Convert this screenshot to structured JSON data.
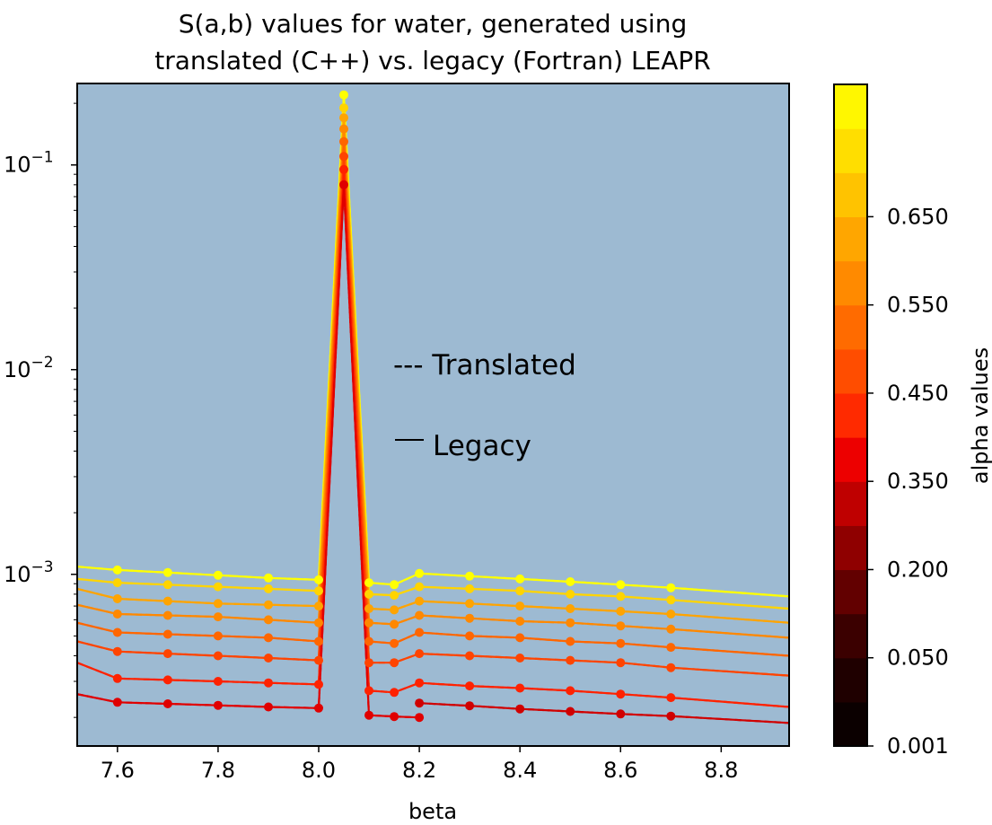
{
  "chart_data": {
    "type": "line",
    "title_line1": "S(a,b) values for water, generated using",
    "title_line2": "translated (C++) vs. legacy (Fortran) LEAPR",
    "xlabel": "beta",
    "ylabel": "",
    "xlim": [
      7.52,
      8.935
    ],
    "ylim": [
      0.000145,
      0.25
    ],
    "yscale": "log",
    "xticks": [
      7.6,
      7.8,
      8.0,
      8.2,
      8.4,
      8.6,
      8.8
    ],
    "yticks": [
      {
        "value": 0.001,
        "base": "10",
        "exp": "−3"
      },
      {
        "value": 0.01,
        "base": "10",
        "exp": "−2"
      },
      {
        "value": 0.1,
        "base": "10",
        "exp": "−1"
      }
    ],
    "plot_background": "#9dbad2",
    "legend": {
      "translated_label": "--- Translated",
      "legacy_label": "Legacy"
    },
    "colorbar": {
      "label": "alpha values",
      "tick_labels": [
        "0.001",
        "0.050",
        "0.200",
        "0.350",
        "0.450",
        "0.550",
        "0.650"
      ],
      "colors": [
        "#0b0000",
        "#1f0000",
        "#3b0000",
        "#620000",
        "#8f0000",
        "#bf0000",
        "#ed0000",
        "#ff2a00",
        "#ff4d00",
        "#ff6b00",
        "#ff8a00",
        "#ffa600",
        "#ffc300",
        "#ffde00",
        "#fff700"
      ]
    },
    "series": [
      {
        "color": "#ffff00",
        "left": [
          [
            7.52,
            0.00109
          ],
          [
            7.6,
            0.00105
          ],
          [
            7.7,
            0.00102
          ],
          [
            7.8,
            0.00099
          ],
          [
            7.9,
            0.00096
          ],
          [
            8.0,
            0.00094
          ]
        ],
        "peak": 0.22,
        "right": [
          [
            8.1,
            0.00091
          ],
          [
            8.15,
            0.00089
          ],
          [
            8.2,
            0.00101
          ],
          [
            8.3,
            0.00098
          ],
          [
            8.4,
            0.00095
          ],
          [
            8.5,
            0.00092
          ],
          [
            8.6,
            0.00089
          ],
          [
            8.7,
            0.00086
          ],
          [
            8.935,
            0.00078
          ]
        ]
      },
      {
        "color": "#ffd400",
        "left": [
          [
            7.52,
            0.00095
          ],
          [
            7.6,
            0.00091
          ],
          [
            7.7,
            0.00089
          ],
          [
            7.8,
            0.00087
          ],
          [
            7.9,
            0.00085
          ],
          [
            8.0,
            0.00083
          ]
        ],
        "peak": 0.19,
        "right": [
          [
            8.1,
            0.0008
          ],
          [
            8.15,
            0.00079
          ],
          [
            8.2,
            0.00087
          ],
          [
            8.3,
            0.00085
          ],
          [
            8.4,
            0.00083
          ],
          [
            8.5,
            0.0008
          ],
          [
            8.6,
            0.00078
          ],
          [
            8.7,
            0.00075
          ],
          [
            8.935,
            0.00068
          ]
        ]
      },
      {
        "color": "#ffa400",
        "left": [
          [
            7.52,
            0.00085
          ],
          [
            7.6,
            0.00076
          ],
          [
            7.7,
            0.00074
          ],
          [
            7.8,
            0.00072
          ],
          [
            7.9,
            0.00071
          ],
          [
            8.0,
            0.0007
          ]
        ],
        "peak": 0.17,
        "right": [
          [
            8.1,
            0.00068
          ],
          [
            8.15,
            0.00067
          ],
          [
            8.2,
            0.00074
          ],
          [
            8.3,
            0.00072
          ],
          [
            8.4,
            0.0007
          ],
          [
            8.5,
            0.00068
          ],
          [
            8.6,
            0.00066
          ],
          [
            8.7,
            0.00064
          ],
          [
            8.935,
            0.00058
          ]
        ]
      },
      {
        "color": "#ff8800",
        "left": [
          [
            7.52,
            0.00071
          ],
          [
            7.6,
            0.00064
          ],
          [
            7.7,
            0.00063
          ],
          [
            7.8,
            0.00062
          ],
          [
            7.9,
            0.0006
          ],
          [
            8.0,
            0.00058
          ]
        ],
        "peak": 0.15,
        "right": [
          [
            8.1,
            0.00058
          ],
          [
            8.15,
            0.00057
          ],
          [
            8.2,
            0.00063
          ],
          [
            8.3,
            0.00061
          ],
          [
            8.4,
            0.00059
          ],
          [
            8.5,
            0.00058
          ],
          [
            8.6,
            0.00056
          ],
          [
            8.7,
            0.00054
          ],
          [
            8.935,
            0.00049
          ]
        ]
      },
      {
        "color": "#ff6600",
        "left": [
          [
            7.52,
            0.00058
          ],
          [
            7.6,
            0.00052
          ],
          [
            7.7,
            0.00051
          ],
          [
            7.8,
            0.0005
          ],
          [
            7.9,
            0.00049
          ],
          [
            8.0,
            0.00047
          ]
        ],
        "peak": 0.13,
        "right": [
          [
            8.1,
            0.00047
          ],
          [
            8.15,
            0.00046
          ],
          [
            8.2,
            0.00052
          ],
          [
            8.3,
            0.0005
          ],
          [
            8.4,
            0.00049
          ],
          [
            8.5,
            0.00047
          ],
          [
            8.6,
            0.00046
          ],
          [
            8.7,
            0.00044
          ],
          [
            8.935,
            0.0004
          ]
        ]
      },
      {
        "color": "#ff4400",
        "left": [
          [
            7.52,
            0.00047
          ],
          [
            7.6,
            0.00042
          ],
          [
            7.7,
            0.00041
          ],
          [
            7.8,
            0.0004
          ],
          [
            7.9,
            0.00039
          ],
          [
            8.0,
            0.00038
          ]
        ],
        "peak": 0.11,
        "right": [
          [
            8.1,
            0.00037
          ],
          [
            8.15,
            0.00037
          ],
          [
            8.2,
            0.00041
          ],
          [
            8.3,
            0.0004
          ],
          [
            8.4,
            0.00039
          ],
          [
            8.5,
            0.00038
          ],
          [
            8.6,
            0.00037
          ],
          [
            8.7,
            0.00035
          ],
          [
            8.935,
            0.00032
          ]
        ]
      },
      {
        "color": "#ff2200",
        "left": [
          [
            7.52,
            0.00037
          ],
          [
            7.6,
            0.00031
          ],
          [
            7.7,
            0.000305
          ],
          [
            7.8,
            0.0003
          ],
          [
            7.9,
            0.000295
          ],
          [
            8.0,
            0.00029
          ]
        ],
        "peak": 0.095,
        "right": [
          [
            8.1,
            0.00027
          ],
          [
            8.15,
            0.000265
          ],
          [
            8.2,
            0.000295
          ],
          [
            8.3,
            0.000285
          ],
          [
            8.4,
            0.000278
          ],
          [
            8.5,
            0.00027
          ],
          [
            8.6,
            0.00026
          ],
          [
            8.7,
            0.00025
          ],
          [
            8.935,
            0.000225
          ]
        ]
      },
      {
        "color": "#e00000",
        "left": [
          [
            7.52,
            0.00026
          ],
          [
            7.6,
            0.000237
          ],
          [
            7.7,
            0.000233
          ],
          [
            7.8,
            0.000229
          ],
          [
            7.9,
            0.000225
          ],
          [
            8.0,
            0.000222
          ]
        ],
        "peak": 0.08,
        "right": [
          [
            8.1,
            0.000205
          ],
          [
            8.15,
            0.000202
          ],
          [
            8.2,
            0.0002
          ]
        ]
      },
      {
        "color": "#d00000",
        "left": [],
        "peak": null,
        "right": [
          [
            8.2,
            0.000235
          ],
          [
            8.3,
            0.000228
          ],
          [
            8.4,
            0.00022
          ],
          [
            8.5,
            0.000214
          ],
          [
            8.6,
            0.000208
          ],
          [
            8.7,
            0.000203
          ],
          [
            8.935,
            0.000188
          ]
        ]
      }
    ]
  }
}
